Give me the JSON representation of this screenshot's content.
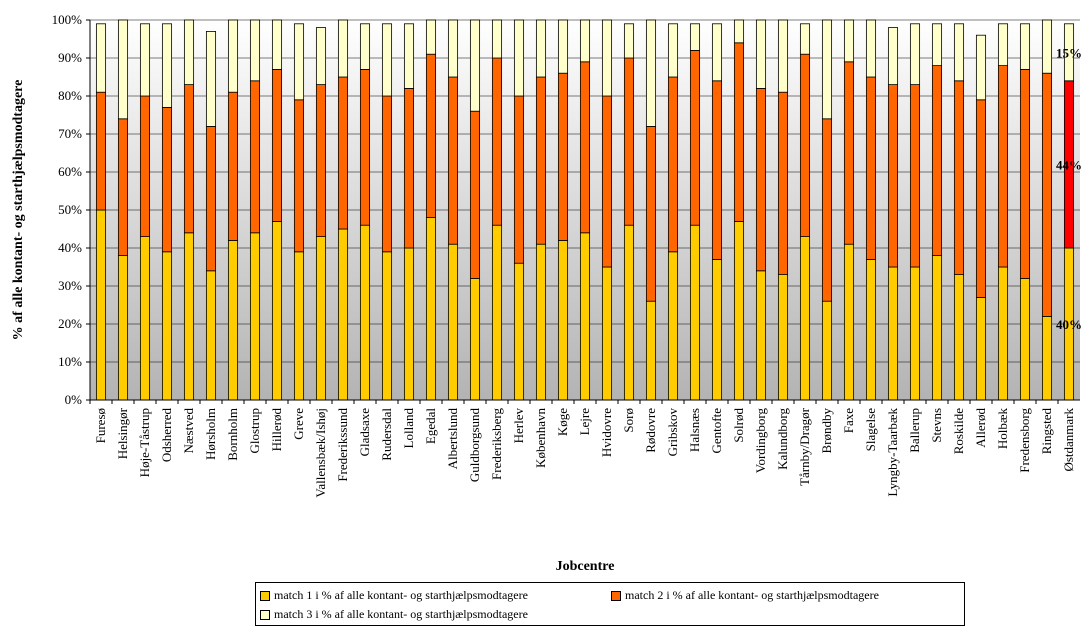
{
  "chart_data": {
    "type": "bar",
    "stacked": true,
    "title": "",
    "xlabel": "Jobcentre",
    "ylabel": "% af alle kontant- og starthjælpsmodtagere",
    "ylim": [
      0,
      100
    ],
    "yticks": [
      "0%",
      "10%",
      "20%",
      "30%",
      "40%",
      "50%",
      "60%",
      "70%",
      "80%",
      "90%",
      "100%"
    ],
    "grid": true,
    "legend_position": "bottom",
    "categories": [
      "Furesø",
      "Helsingør",
      "Høje-Tåstrup",
      "Odsherred",
      "Næstved",
      "Hørsholm",
      "Bornholm",
      "Glostrup",
      "Hillerød",
      "Greve",
      "Vallensbæk/Ishøj",
      "Frederikssund",
      "Gladsaxe",
      "Rudersdal",
      "Lolland",
      "Egedal",
      "Albertslund",
      "Guldborgsund",
      "Frederiksberg",
      "Herlev",
      "København",
      "Køge",
      "Lejre",
      "Hvidovre",
      "Sorø",
      "Rødovre",
      "Gribskov",
      "Halsnæs",
      "Gentofte",
      "Solrød",
      "Vordingborg",
      "Kalundborg",
      "Tårnby/Dragør",
      "Brøndby",
      "Faxe",
      "Slagelse",
      "Lyngby-Taarbæk",
      "Ballerup",
      "Stevns",
      "Roskilde",
      "Allerød",
      "Holbæk",
      "Fredensborg",
      "Ringsted",
      "Østdanmark"
    ],
    "series": [
      {
        "name": "match 1 i % af alle kontant- og starthjælpsmodtagere",
        "color": "#FFCC00",
        "values": [
          50,
          38,
          43,
          39,
          44,
          34,
          42,
          44,
          47,
          39,
          43,
          45,
          46,
          39,
          40,
          48,
          41,
          32,
          46,
          36,
          41,
          42,
          44,
          35,
          46,
          26,
          39,
          46,
          37,
          47,
          34,
          33,
          43,
          26,
          41,
          37,
          35,
          35,
          38,
          33,
          27,
          35,
          32,
          22,
          40
        ]
      },
      {
        "name": "match 2 i % af alle kontant- og starthjælpsmodtagere",
        "color": "#FF6600",
        "values": [
          31,
          36,
          37,
          38,
          39,
          38,
          39,
          40,
          40,
          40,
          40,
          40,
          41,
          41,
          42,
          43,
          44,
          44,
          44,
          44,
          44,
          44,
          45,
          45,
          44,
          46,
          46,
          46,
          47,
          47,
          48,
          48,
          48,
          48,
          48,
          48,
          48,
          48,
          50,
          51,
          52,
          53,
          55,
          64,
          44
        ]
      },
      {
        "name": "match 3 i % af alle kontant- og starthjælpsmodtagere",
        "color": "#FFFFCC",
        "values": [
          18,
          26,
          19,
          22,
          17,
          25,
          19,
          16,
          13,
          20,
          15,
          15,
          12,
          19,
          17,
          9,
          15,
          24,
          10,
          20,
          15,
          14,
          11,
          20,
          9,
          28,
          14,
          7,
          15,
          6,
          18,
          19,
          8,
          26,
          11,
          15,
          15,
          16,
          11,
          15,
          17,
          11,
          12,
          14,
          15
        ]
      }
    ],
    "highlight": {
      "category": "Østdanmark",
      "series_colors": [
        "#FFCC00",
        "#FF0000",
        "#FFFFCC"
      ]
    },
    "data_labels": [
      {
        "category": "Østdanmark",
        "series": 0,
        "text": "40%"
      },
      {
        "category": "Østdanmark",
        "series": 1,
        "text": "44%"
      },
      {
        "category": "Østdanmark",
        "series": 2,
        "text": "15%"
      }
    ]
  }
}
